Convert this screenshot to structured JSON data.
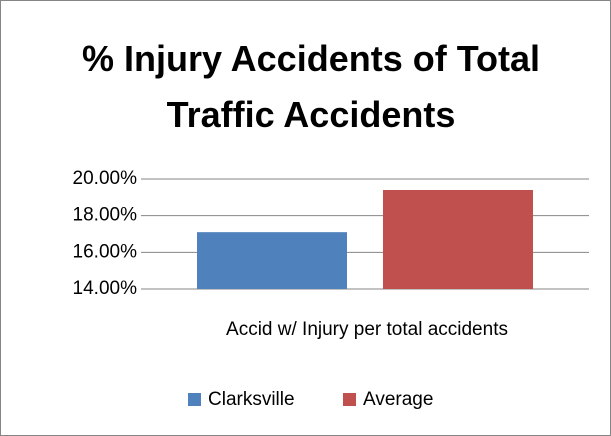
{
  "chart_data": {
    "type": "bar",
    "title": "% Injury Accidents of Total Traffic Accidents",
    "categories": [
      "Accid w/ Injury per total accidents"
    ],
    "series": [
      {
        "name": "Clarksville",
        "color": "#4f81bd",
        "values": [
          17.1
        ]
      },
      {
        "name": "Average",
        "color": "#c0504d",
        "values": [
          19.4
        ]
      }
    ],
    "ylim": [
      14,
      20
    ],
    "yticks": [
      {
        "value": 14,
        "label": "14.00%"
      },
      {
        "value": 16,
        "label": "16.00%"
      },
      {
        "value": 18,
        "label": "18.00%"
      },
      {
        "value": 20,
        "label": "20.00%"
      }
    ],
    "grid": true,
    "legend": "bottom"
  }
}
